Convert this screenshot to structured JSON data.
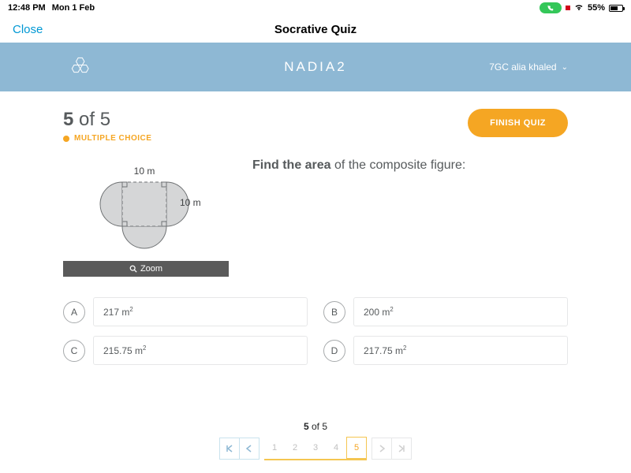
{
  "status": {
    "time": "12:48 PM",
    "date": "Mon 1 Feb",
    "battery_pct": "55%"
  },
  "nav": {
    "close": "Close",
    "title": "Socrative Quiz"
  },
  "header": {
    "quiz_name": "NADIA2",
    "user": "7GC alia khaled"
  },
  "progress": {
    "text": "5 of 5",
    "type": "MULTIPLE CHOICE"
  },
  "buttons": {
    "finish": "FINISH QUIZ",
    "zoom": "Zoom"
  },
  "figure": {
    "top_label": "10 m",
    "right_label": "10 m",
    "shape_fill": "#d5d6d7",
    "shape_stroke": "#6f7274",
    "dash": "4,3"
  },
  "question": {
    "prompt": "Find the area of the composite figure:"
  },
  "choices": {
    "a": {
      "letter": "A",
      "text": "217 m²"
    },
    "b": {
      "letter": "B",
      "text": "200 m²"
    },
    "c": {
      "letter": "C",
      "text": "215.75 m²"
    },
    "d": {
      "letter": "D",
      "text": "217.75 m²"
    }
  },
  "pager": {
    "label": "5 of 5",
    "pages": [
      "1",
      "2",
      "3",
      "4",
      "5"
    ],
    "current": 5
  },
  "colors": {
    "header_bg": "#8eb8d4",
    "accent": "#f5a623",
    "close": "#0098d4"
  }
}
